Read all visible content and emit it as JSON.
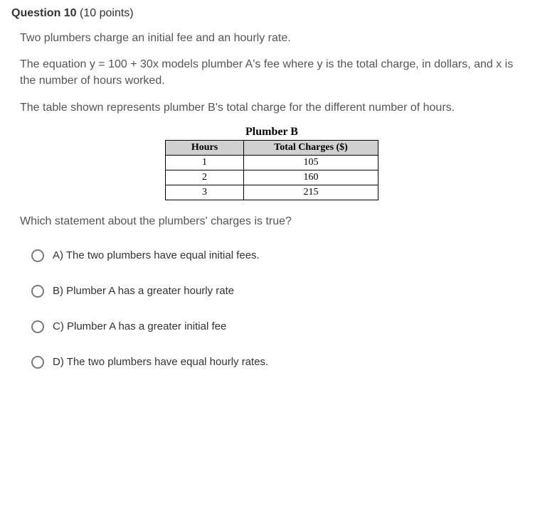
{
  "header": {
    "label": "Question 10",
    "points": "(10 points)"
  },
  "paragraphs": {
    "p1": "Two plumbers charge an initial fee and an hourly rate.",
    "p2": "The equation y = 100 + 30x models plumber A's fee where y is the total charge, in dollars, and x is the number of hours worked.",
    "p3": "The table shown represents plumber B's total charge for the different number of hours.",
    "p4": "Which statement about the plumbers' charges is true?"
  },
  "table": {
    "title": "Plumber B",
    "col1": "Hours",
    "col2": "Total Charges ($)",
    "rows": [
      {
        "h": "1",
        "c": "105"
      },
      {
        "h": "2",
        "c": "160"
      },
      {
        "h": "3",
        "c": "215"
      }
    ]
  },
  "options": {
    "a": "A) The two plumbers have equal initial fees.",
    "b": "B) Plumber A has a greater hourly rate",
    "c": "C) Plumber A has a greater initial fee",
    "d": "D) The two plumbers have equal hourly rates."
  }
}
